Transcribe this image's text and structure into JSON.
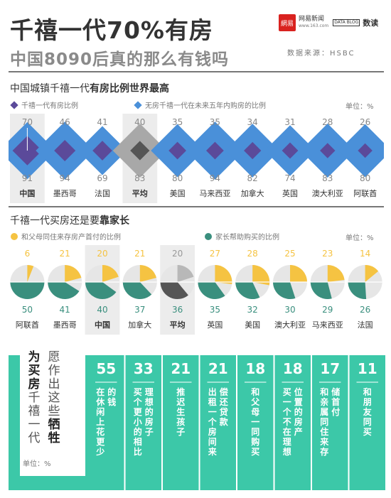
{
  "title": "千禧一代70%有房",
  "subtitle": "中国8090后真的那么有钱吗",
  "brand": {
    "logo": "網易",
    "name": "网易新闻",
    "site": "www.163.com",
    "databook": "DATA BLOG",
    "product": "数读"
  },
  "source": "数据来源：HSBC",
  "section1": {
    "title_plain": "中国城镇千禧一代",
    "title_bold": "有房比例世界最高",
    "legend_own": "千禧一代有房比例",
    "legend_plan": "无房千禧一代在未来五年内购房的比例",
    "unit": "单位：%",
    "colors": {
      "own": "#5b4a9a",
      "plan": "#4a90d9",
      "avg_own": "#555555",
      "avg_plan": "#a8a8a8"
    }
  },
  "section2": {
    "title_plain": "千禧一代买房还是要",
    "title_bold": "靠家长",
    "legend_parents": "和父母同住来存房产首付的比例",
    "legend_help": "家长帮助购买的比例",
    "unit": "单位：%",
    "colors": {
      "parents": "#f5c342",
      "help": "#3a8f7e",
      "avg_parents": "#b8b8b8",
      "avg_help": "#555555",
      "rest": "#e6e6e6"
    }
  },
  "section3": {
    "label_bold1": "为买房",
    "label_normal1": "千禧一代",
    "label_normal2": "愿作出这些",
    "label_bold2": "牺牲",
    "unit": "单位：%",
    "color": "#3cc8a8"
  },
  "chart_data": [
    {
      "type": "bar",
      "title": "中国城镇千禧一代有房比例世界最高",
      "categories": [
        "中国",
        "墨西哥",
        "法国",
        "平均",
        "美国",
        "马来西亚",
        "加拿大",
        "英国",
        "澳大利亚",
        "阿联酋"
      ],
      "series": [
        {
          "name": "千禧一代有房比例",
          "values": [
            70,
            46,
            41,
            40,
            35,
            35,
            34,
            31,
            28,
            26
          ]
        },
        {
          "name": "无房千禧一代在未来五年内购房的比例",
          "values": [
            91,
            94,
            69,
            83,
            80,
            94,
            82,
            74,
            83,
            80
          ]
        }
      ],
      "highlight": [
        "中国",
        "平均"
      ]
    },
    {
      "type": "pie",
      "title": "千禧一代买房还是要靠家长",
      "categories": [
        "阿联酋",
        "墨西哥",
        "中国",
        "加拿大",
        "平均",
        "英国",
        "美国",
        "澳大利亚",
        "马来西亚",
        "法国"
      ],
      "series": [
        {
          "name": "和父母同住来存房产首付的比例",
          "values": [
            6,
            21,
            20,
            21,
            20,
            27,
            28,
            25,
            23,
            14
          ]
        },
        {
          "name": "家长帮助购买的比例",
          "values": [
            50,
            41,
            40,
            37,
            36,
            35,
            32,
            30,
            29,
            26
          ]
        }
      ],
      "highlight": [
        "中国",
        "平均"
      ]
    },
    {
      "type": "bar",
      "title": "为买房千禧一代愿作出这些牺牲",
      "categories": [
        "在休闲上花更少的钱",
        "买个更小的相比理想的房子",
        "推迟生孩子",
        "出租一个房间来偿还贷款",
        "和父母一同购买",
        "买一个不在理想位置的房产",
        "和亲属同住来存储首付",
        "和朋友同买"
      ],
      "values": [
        55,
        33,
        21,
        21,
        18,
        18,
        17,
        11
      ]
    }
  ]
}
